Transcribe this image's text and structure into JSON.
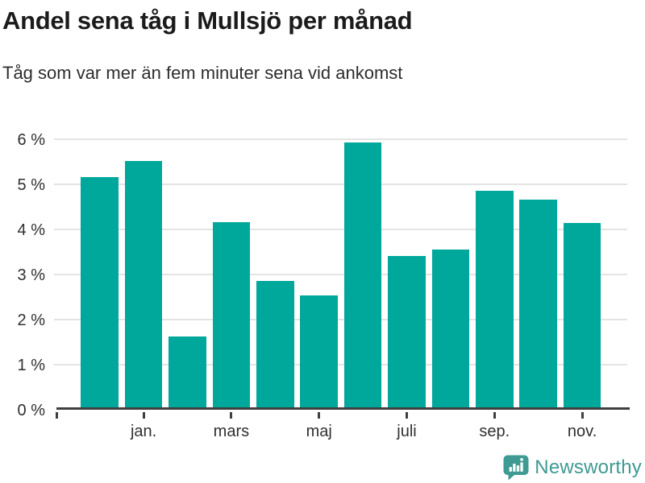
{
  "header": {
    "title": "Andel sena tåg i Mullsjö per månad",
    "subtitle": "Tåg som var mer än fem minuter sena vid ankomst"
  },
  "chart_data": {
    "type": "bar",
    "title": "Andel sena tåg i Mullsjö per månad",
    "subtitle": "Tåg som var mer än fem minuter sena vid ankomst",
    "values": [
      5.1,
      5.47,
      1.57,
      4.1,
      2.8,
      2.48,
      5.87,
      3.36,
      3.5,
      4.8,
      4.6,
      4.09
    ],
    "bar_count": 12,
    "x_tick_labels": [
      "jan.",
      "mars",
      "maj",
      "juli",
      "sep.",
      "nov."
    ],
    "x_tick_bar_indexes": [
      1,
      3,
      5,
      7,
      9,
      11
    ],
    "y_tick_labels": [
      "0 %",
      "1 %",
      "2 %",
      "3 %",
      "4 %",
      "5 %",
      "6 %"
    ],
    "ylim": [
      0,
      6
    ],
    "grid": "horizontal-only",
    "legend": "none",
    "bar_color": "#00A79B",
    "gridline_color": "#e4e4e4",
    "axis_color": "#3f3f3f"
  },
  "footer": {
    "brand": "Newsworthy",
    "brand_color": "#3E9A92",
    "logo_icon": "speech-bubble-with-bar-chart-and-exclamation"
  }
}
